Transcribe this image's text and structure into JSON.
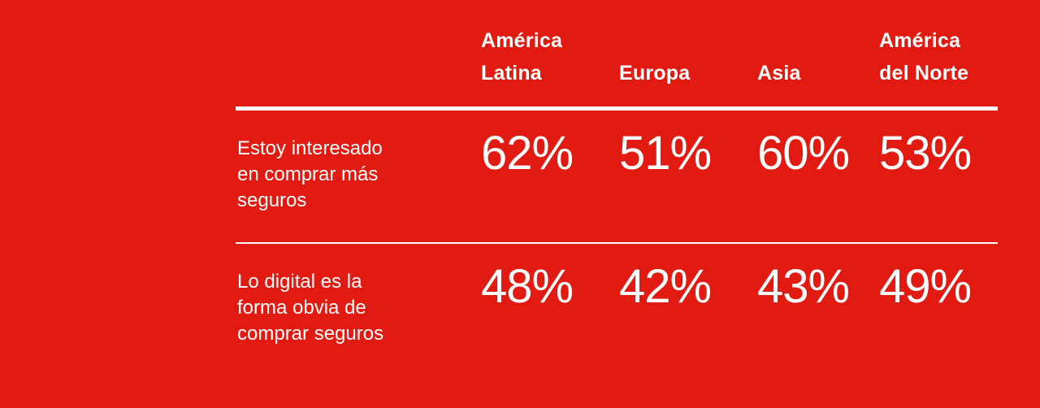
{
  "slide": {
    "background_color": "#E11B12",
    "text_color": "#FFFFFF",
    "rule_color": "#FFFFFF"
  },
  "table": {
    "column_headers": [
      "América\nLatina",
      "Europa",
      "Asia",
      "América\ndel Norte"
    ],
    "rows": [
      {
        "label": "Estoy interesado\nen comprar más\nseguros",
        "values": [
          "62%",
          "51%",
          "60%",
          "53%"
        ]
      },
      {
        "label": "Lo digital es la\nforma obvia de\ncomprar seguros",
        "values": [
          "48%",
          "42%",
          "43%",
          "49%"
        ]
      }
    ]
  },
  "chart_data": {
    "type": "table",
    "title": "",
    "categories": [
      "América Latina",
      "Europa",
      "Asia",
      "América del Norte"
    ],
    "series": [
      {
        "name": "Estoy interesado en comprar más seguros",
        "values": [
          62,
          51,
          60,
          53
        ]
      },
      {
        "name": "Lo digital es la forma obvia de comprar seguros",
        "values": [
          48,
          42,
          43,
          49
        ]
      }
    ],
    "value_unit": "%"
  }
}
